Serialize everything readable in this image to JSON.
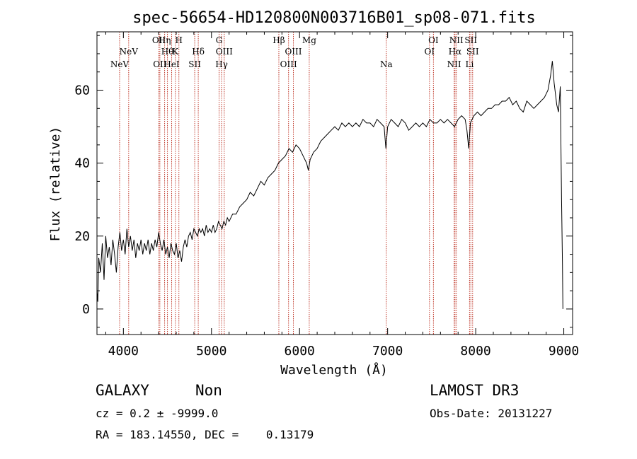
{
  "chart_data": {
    "type": "line",
    "title": "spec-56654-HD120800N003716B01_sp08-071.fits",
    "xlabel": "Wavelength (Å)",
    "ylabel": "Flux (relative)",
    "xlim": [
      3700,
      9100
    ],
    "ylim": [
      -7,
      76
    ],
    "x_ticks": [
      4000,
      5000,
      6000,
      7000,
      8000,
      9000
    ],
    "y_ticks": [
      0,
      20,
      40,
      60
    ],
    "grid": false,
    "spectrum": [
      [
        3700,
        5
      ],
      [
        3710,
        2
      ],
      [
        3720,
        14
      ],
      [
        3740,
        10
      ],
      [
        3760,
        18
      ],
      [
        3780,
        8
      ],
      [
        3800,
        20
      ],
      [
        3820,
        14
      ],
      [
        3840,
        17
      ],
      [
        3860,
        12
      ],
      [
        3880,
        19
      ],
      [
        3900,
        15
      ],
      [
        3920,
        10
      ],
      [
        3940,
        17
      ],
      [
        3960,
        21
      ],
      [
        3980,
        16
      ],
      [
        4000,
        19
      ],
      [
        4020,
        15
      ],
      [
        4040,
        22
      ],
      [
        4060,
        17
      ],
      [
        4080,
        20
      ],
      [
        4100,
        16
      ],
      [
        4120,
        19
      ],
      [
        4140,
        14
      ],
      [
        4160,
        18
      ],
      [
        4180,
        16
      ],
      [
        4200,
        19
      ],
      [
        4220,
        15
      ],
      [
        4240,
        18
      ],
      [
        4260,
        16
      ],
      [
        4280,
        19
      ],
      [
        4300,
        15
      ],
      [
        4320,
        18
      ],
      [
        4340,
        16
      ],
      [
        4360,
        19
      ],
      [
        4380,
        17
      ],
      [
        4400,
        21
      ],
      [
        4420,
        18
      ],
      [
        4440,
        16
      ],
      [
        4460,
        19
      ],
      [
        4480,
        15
      ],
      [
        4500,
        17
      ],
      [
        4520,
        14
      ],
      [
        4540,
        18
      ],
      [
        4560,
        16
      ],
      [
        4580,
        15
      ],
      [
        4600,
        18
      ],
      [
        4620,
        14
      ],
      [
        4640,
        16
      ],
      [
        4660,
        13
      ],
      [
        4680,
        17
      ],
      [
        4700,
        19
      ],
      [
        4720,
        17
      ],
      [
        4740,
        20
      ],
      [
        4760,
        21
      ],
      [
        4780,
        19
      ],
      [
        4800,
        22
      ],
      [
        4820,
        21
      ],
      [
        4840,
        20
      ],
      [
        4860,
        22
      ],
      [
        4880,
        21
      ],
      [
        4900,
        22
      ],
      [
        4920,
        20
      ],
      [
        4940,
        23
      ],
      [
        4960,
        21
      ],
      [
        4980,
        22
      ],
      [
        5000,
        21
      ],
      [
        5020,
        23
      ],
      [
        5040,
        21
      ],
      [
        5060,
        22
      ],
      [
        5080,
        24
      ],
      [
        5100,
        23
      ],
      [
        5120,
        22
      ],
      [
        5140,
        24
      ],
      [
        5160,
        23
      ],
      [
        5180,
        25
      ],
      [
        5200,
        24
      ],
      [
        5240,
        26
      ],
      [
        5280,
        26
      ],
      [
        5320,
        28
      ],
      [
        5360,
        29
      ],
      [
        5400,
        30
      ],
      [
        5440,
        32
      ],
      [
        5480,
        31
      ],
      [
        5520,
        33
      ],
      [
        5560,
        35
      ],
      [
        5600,
        34
      ],
      [
        5640,
        36
      ],
      [
        5680,
        37
      ],
      [
        5720,
        38
      ],
      [
        5760,
        40
      ],
      [
        5800,
        41
      ],
      [
        5840,
        42
      ],
      [
        5880,
        44
      ],
      [
        5920,
        43
      ],
      [
        5960,
        45
      ],
      [
        6000,
        44
      ],
      [
        6040,
        42
      ],
      [
        6080,
        40
      ],
      [
        6100,
        38
      ],
      [
        6120,
        41
      ],
      [
        6160,
        43
      ],
      [
        6200,
        44
      ],
      [
        6240,
        46
      ],
      [
        6280,
        47
      ],
      [
        6320,
        48
      ],
      [
        6360,
        49
      ],
      [
        6400,
        50
      ],
      [
        6440,
        49
      ],
      [
        6480,
        51
      ],
      [
        6520,
        50
      ],
      [
        6560,
        51
      ],
      [
        6600,
        50
      ],
      [
        6640,
        51
      ],
      [
        6680,
        50
      ],
      [
        6720,
        52
      ],
      [
        6760,
        51
      ],
      [
        6800,
        51
      ],
      [
        6840,
        50
      ],
      [
        6880,
        52
      ],
      [
        6920,
        51
      ],
      [
        6960,
        50
      ],
      [
        6980,
        44
      ],
      [
        7000,
        50
      ],
      [
        7040,
        52
      ],
      [
        7080,
        51
      ],
      [
        7120,
        50
      ],
      [
        7160,
        52
      ],
      [
        7200,
        51
      ],
      [
        7240,
        49
      ],
      [
        7280,
        50
      ],
      [
        7320,
        51
      ],
      [
        7360,
        50
      ],
      [
        7400,
        51
      ],
      [
        7440,
        50
      ],
      [
        7480,
        52
      ],
      [
        7520,
        51
      ],
      [
        7560,
        51
      ],
      [
        7600,
        52
      ],
      [
        7640,
        51
      ],
      [
        7680,
        52
      ],
      [
        7720,
        51
      ],
      [
        7760,
        50
      ],
      [
        7800,
        52
      ],
      [
        7840,
        53
      ],
      [
        7880,
        52
      ],
      [
        7900,
        49
      ],
      [
        7920,
        44
      ],
      [
        7940,
        51
      ],
      [
        7980,
        53
      ],
      [
        8020,
        54
      ],
      [
        8060,
        53
      ],
      [
        8100,
        54
      ],
      [
        8140,
        55
      ],
      [
        8180,
        55
      ],
      [
        8220,
        56
      ],
      [
        8260,
        56
      ],
      [
        8300,
        57
      ],
      [
        8340,
        57
      ],
      [
        8380,
        58
      ],
      [
        8420,
        56
      ],
      [
        8460,
        57
      ],
      [
        8500,
        55
      ],
      [
        8540,
        54
      ],
      [
        8580,
        57
      ],
      [
        8620,
        56
      ],
      [
        8660,
        55
      ],
      [
        8700,
        56
      ],
      [
        8740,
        57
      ],
      [
        8780,
        58
      ],
      [
        8820,
        60
      ],
      [
        8850,
        64
      ],
      [
        8870,
        68
      ],
      [
        8890,
        62
      ],
      [
        8910,
        58
      ],
      [
        8920,
        56
      ],
      [
        8940,
        54
      ],
      [
        8960,
        61
      ],
      [
        8975,
        30
      ],
      [
        8985,
        12
      ],
      [
        8990,
        0
      ]
    ],
    "lines": [
      {
        "label": "NeV",
        "wavelength": 3957,
        "row": 3
      },
      {
        "label": "NeV",
        "wavelength": 4060,
        "row": 2
      },
      {
        "label": "OII",
        "wavelength": 4403,
        "row": 1
      },
      {
        "label": "OII",
        "wavelength": 4414,
        "row": 3
      },
      {
        "label": "Hη",
        "wavelength": 4468,
        "row": 1
      },
      {
        "label": "Hθ",
        "wavelength": 4500,
        "row": 2
      },
      {
        "label": "HeI",
        "wavelength": 4548,
        "row": 3
      },
      {
        "label": "H",
        "wavelength": 4630,
        "row": 1
      },
      {
        "label": "K",
        "wavelength": 4590,
        "row": 2
      },
      {
        "label": "Hδ",
        "wavelength": 4850,
        "row": 2
      },
      {
        "label": "SII",
        "wavelength": 4810,
        "row": 3
      },
      {
        "label": "G",
        "wavelength": 5087,
        "row": 1
      },
      {
        "label": "OIII",
        "wavelength": 5145,
        "row": 2
      },
      {
        "label": "Hγ",
        "wavelength": 5115,
        "row": 3
      },
      {
        "label": "Hβ",
        "wavelength": 5765,
        "row": 1
      },
      {
        "label": "OIII",
        "wavelength": 5930,
        "row": 2
      },
      {
        "label": "OIII",
        "wavelength": 5875,
        "row": 3
      },
      {
        "label": "Mg",
        "wavelength": 6110,
        "row": 1
      },
      {
        "label": "Na",
        "wavelength": 6985,
        "row": 3
      },
      {
        "label": "OI",
        "wavelength": 7520,
        "row": 1
      },
      {
        "label": "OI",
        "wavelength": 7475,
        "row": 2
      },
      {
        "label": "NII",
        "wavelength": 7780,
        "row": 1
      },
      {
        "label": "Hα",
        "wavelength": 7765,
        "row": 2
      },
      {
        "label": "NII",
        "wavelength": 7755,
        "row": 3
      },
      {
        "label": "SII",
        "wavelength": 7945,
        "row": 1
      },
      {
        "label": "SII",
        "wavelength": 7965,
        "row": 2
      },
      {
        "label": "Li",
        "wavelength": 7930,
        "row": 3
      }
    ]
  },
  "footer": {
    "object_class": "GALAXY",
    "subclass": "Non",
    "survey": "LAMOST DR3",
    "cz": "cz = 0.2 ± -9999.0",
    "obs_date": "Obs-Date: 20131227",
    "coords": "RA = 183.14550, DEC =    0.13179"
  },
  "colors": {
    "spectrum": "#000000",
    "line_markers": "#c0392b"
  }
}
